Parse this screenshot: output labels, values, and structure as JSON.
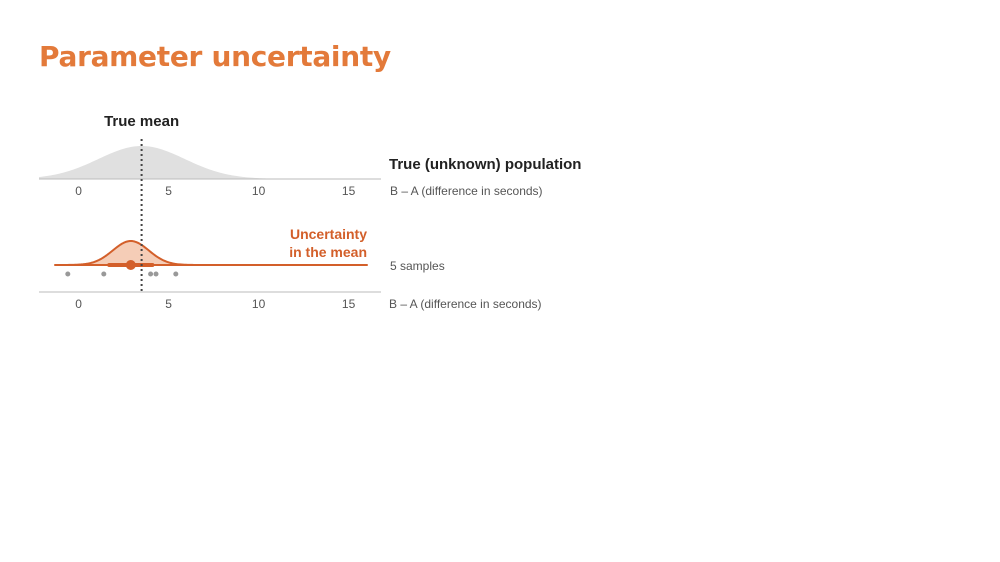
{
  "title": "Parameter uncertainty",
  "colors": {
    "title": "#e37a3a",
    "accent": "#d35f2a",
    "accent_fill": "#f5cdb7",
    "population_fill": "#e0e0e0",
    "sample_dot": "#999999",
    "axis": "#bbbbbb",
    "true_mean_line": "#444444"
  },
  "chart_data": [
    {
      "type": "area",
      "title": "True (unknown) population",
      "xlabel": "B – A (difference in seconds)",
      "xlim": [
        -2.2,
        16.8
      ],
      "xticks": [
        0,
        5,
        10,
        15
      ],
      "xticklabels": [
        "0",
        "5",
        "10",
        "15"
      ],
      "grid": false,
      "distribution": {
        "shape": "normal",
        "mean": 3.5,
        "sd": 2.4
      },
      "annotation": {
        "text": "True mean",
        "x": 3.5
      }
    },
    {
      "type": "scatter",
      "title": "",
      "series_label": "5 samples",
      "xlabel": "B – A (difference in seconds)",
      "xlim": [
        -2.2,
        16.8
      ],
      "xticks": [
        0,
        5,
        10,
        15
      ],
      "xticklabels": [
        "0",
        "5",
        "10",
        "15"
      ],
      "grid": false,
      "samples": [
        -0.6,
        1.4,
        4.0,
        4.3,
        5.4
      ],
      "sample_mean": 2.9,
      "interval": [
        1.7,
        4.1
      ],
      "mean_distribution": {
        "shape": "normal",
        "mean": 2.9,
        "sd": 1.0
      },
      "true_mean": 3.5,
      "annotation": [
        "Uncertainty",
        "in the mean"
      ]
    }
  ]
}
